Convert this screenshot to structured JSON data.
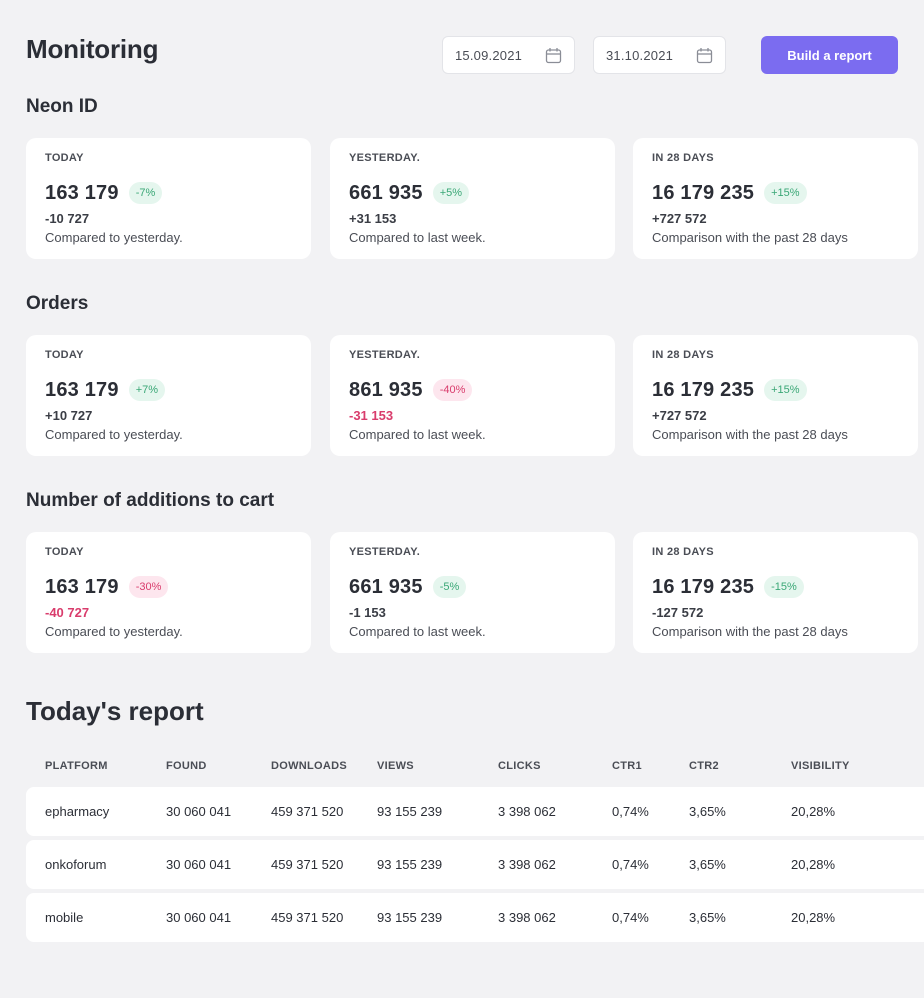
{
  "page": {
    "title": "Monitoring"
  },
  "filters": {
    "date_from": "15.09.2021",
    "date_to": "31.10.2021",
    "build_label": "Build a report",
    "icon": "calendar-icon"
  },
  "colors": {
    "accent": "#7b6cf0",
    "positive": "#3aa776",
    "negative": "#d93c6c",
    "background": "#f2f2f4"
  },
  "sections": [
    {
      "title": "Neon ID",
      "cards": [
        {
          "label": "TODAY",
          "value": "163 179",
          "badge": "-7%",
          "badge_tone": "positive",
          "delta": "-10 727",
          "delta_tone": "neutral",
          "caption": "Compared to yesterday."
        },
        {
          "label": "YESTERDAY.",
          "value": "661 935",
          "badge": "+5%",
          "badge_tone": "positive",
          "delta": "+31 153",
          "delta_tone": "neutral",
          "caption": "Compared to last week."
        },
        {
          "label": "IN 28 DAYS",
          "value": "16 179 235",
          "badge": "+15%",
          "badge_tone": "positive",
          "delta": "+727 572",
          "delta_tone": "neutral",
          "caption": "Comparison with the past 28 days"
        }
      ]
    },
    {
      "title": "Orders",
      "cards": [
        {
          "label": "TODAY",
          "value": "163 179",
          "badge": "+7%",
          "badge_tone": "positive",
          "delta": "+10 727",
          "delta_tone": "neutral",
          "caption": "Compared to yesterday."
        },
        {
          "label": "YESTERDAY.",
          "value": "861 935",
          "badge": "-40%",
          "badge_tone": "negative",
          "delta": "-31 153",
          "delta_tone": "negative",
          "caption": "Compared to last week."
        },
        {
          "label": "IN 28 DAYS",
          "value": "16 179 235",
          "badge": "+15%",
          "badge_tone": "positive",
          "delta": "+727 572",
          "delta_tone": "neutral",
          "caption": "Comparison with the past 28 days"
        }
      ]
    },
    {
      "title": "Number of additions to cart",
      "cards": [
        {
          "label": "TODAY",
          "value": "163 179",
          "badge": "-30%",
          "badge_tone": "negative",
          "delta": "-40 727",
          "delta_tone": "negative",
          "caption": "Compared to yesterday."
        },
        {
          "label": "YESTERDAY.",
          "value": "661 935",
          "badge": "-5%",
          "badge_tone": "positive",
          "delta": "-1 153",
          "delta_tone": "neutral",
          "caption": "Compared to last week."
        },
        {
          "label": "IN 28 DAYS",
          "value": "16 179 235",
          "badge": "-15%",
          "badge_tone": "positive",
          "delta": "-127 572",
          "delta_tone": "neutral",
          "caption": "Comparison with the past 28 days"
        }
      ]
    }
  ],
  "report": {
    "title": "Today's report",
    "columns": [
      "PLATFORM",
      "FOUND",
      "DOWNLOADS",
      "VIEWS",
      "CLICKS",
      "CTR1",
      "CTR2",
      "VISIBILITY"
    ],
    "rows": [
      [
        "epharmacy",
        "30 060 041",
        "459 371 520",
        "93 155 239",
        "3 398 062",
        "0,74%",
        "3,65%",
        "20,28%"
      ],
      [
        "onkoforum",
        "30 060 041",
        "459 371 520",
        "93 155 239",
        "3 398 062",
        "0,74%",
        "3,65%",
        "20,28%"
      ],
      [
        "mobile",
        "30 060 041",
        "459 371 520",
        "93 155 239",
        "3 398 062",
        "0,74%",
        "3,65%",
        "20,28%"
      ]
    ]
  }
}
